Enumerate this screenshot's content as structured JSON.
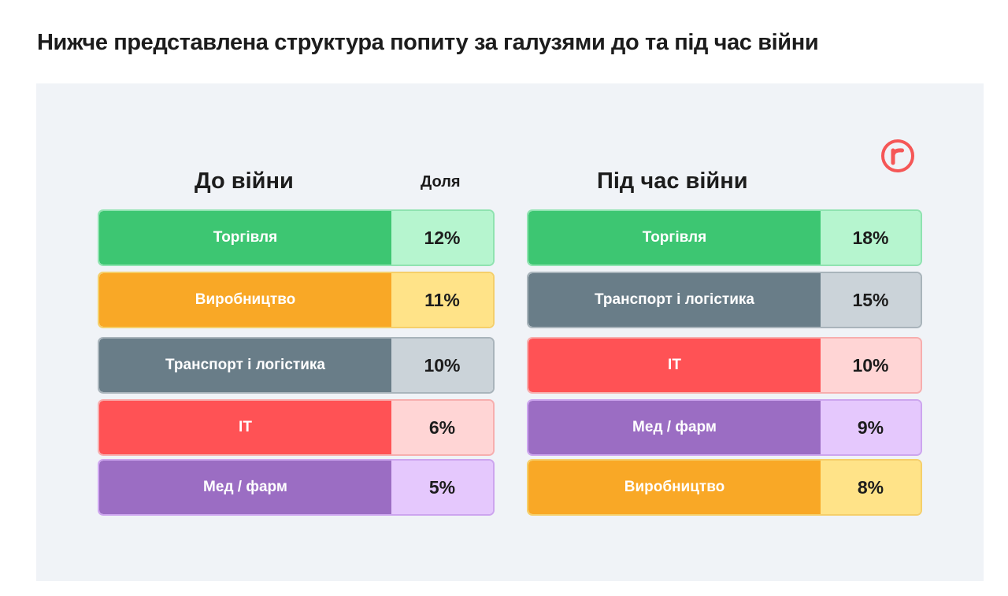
{
  "title": "Нижче представлена структура попиту за галузями до та під час війни",
  "before": {
    "title": "До війни",
    "share_header": "Доля",
    "rows": [
      {
        "label": "Торгівля",
        "value": "12%",
        "label_color": "#3dc672",
        "value_color": "#b6f5cf",
        "border": "#8fe3b0"
      },
      {
        "label": "Виробництво",
        "value": "11%",
        "label_color": "#f9a826",
        "value_color": "#ffe388",
        "border": "#f5cf6a"
      },
      {
        "label": "Транспорт і логістика",
        "value": "10%",
        "label_color": "#697d88",
        "value_color": "#cbd3d9",
        "border": "#a9b4bb"
      },
      {
        "label": "IT",
        "value": "6%",
        "label_color": "#ff5255",
        "value_color": "#ffd5d5",
        "border": "#f7aeae"
      },
      {
        "label": "Мед / фарм",
        "value": "5%",
        "label_color": "#9b6dc3",
        "value_color": "#e5c8fd",
        "border": "#cda5ef"
      }
    ]
  },
  "during": {
    "title": "Під час війни",
    "rows": [
      {
        "label": "Торгівля",
        "value": "18%",
        "label_color": "#3dc672",
        "value_color": "#b6f5cf",
        "border": "#8fe3b0"
      },
      {
        "label": "Транспорт і логістика",
        "value": "15%",
        "label_color": "#697d88",
        "value_color": "#cbd3d9",
        "border": "#a9b4bb"
      },
      {
        "label": "IT",
        "value": "10%",
        "label_color": "#ff5255",
        "value_color": "#ffd5d5",
        "border": "#f7aeae"
      },
      {
        "label": "Мед / фарм",
        "value": "9%",
        "label_color": "#9b6dc3",
        "value_color": "#e5c8fd",
        "border": "#cda5ef"
      },
      {
        "label": "Виробництво",
        "value": "8%",
        "label_color": "#f9a826",
        "value_color": "#ffe388",
        "border": "#f5cf6a"
      }
    ]
  },
  "logo": {
    "icon": "robota-r-logo-icon",
    "color": "#f55656"
  }
}
